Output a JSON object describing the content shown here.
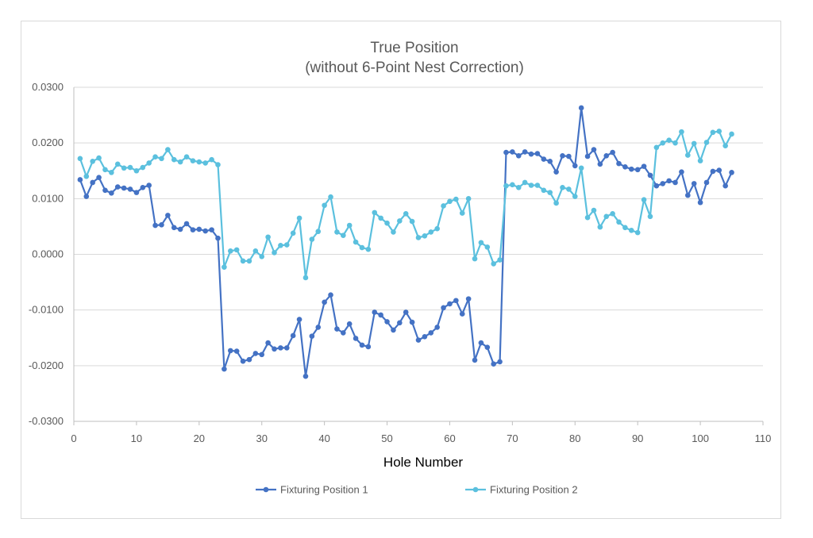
{
  "chart_data": {
    "type": "line",
    "title": "True Position",
    "subtitle": "(without 6-Point Nest Correction)",
    "xlabel": "Hole Number",
    "ylabel": "",
    "xlim": [
      0,
      110
    ],
    "ylim": [
      -0.03,
      0.03
    ],
    "x_ticks": [
      "0",
      "10",
      "20",
      "30",
      "40",
      "50",
      "60",
      "70",
      "80",
      "90",
      "100",
      "110"
    ],
    "y_ticks": [
      "-0.0300",
      "-0.0200",
      "-0.0100",
      "0.0000",
      "0.0100",
      "0.0200",
      "0.0300"
    ],
    "grid": true,
    "legend_position": "bottom",
    "x": [
      1,
      2,
      3,
      4,
      5,
      6,
      7,
      8,
      9,
      10,
      11,
      12,
      13,
      14,
      15,
      16,
      17,
      18,
      19,
      20,
      21,
      22,
      23,
      24,
      25,
      26,
      27,
      28,
      29,
      30,
      31,
      32,
      33,
      34,
      35,
      36,
      37,
      38,
      39,
      40,
      41,
      42,
      43,
      44,
      45,
      46,
      47,
      48,
      49,
      50,
      51,
      52,
      53,
      54,
      55,
      56,
      57,
      58,
      59,
      60,
      61,
      62,
      63,
      64,
      65,
      66,
      67,
      68,
      69,
      70,
      71,
      72,
      73,
      74,
      75,
      76,
      77,
      78,
      79,
      80,
      81,
      82,
      83,
      84,
      85,
      86,
      87,
      88,
      89,
      90,
      91,
      92,
      93,
      94,
      95,
      96,
      97,
      98,
      99,
      100,
      101,
      102,
      103,
      104,
      105
    ],
    "series": [
      {
        "name": "Fixturing Position 1",
        "color": "#4472c4",
        "values": [
          0.0134,
          0.0104,
          0.0129,
          0.0138,
          0.0115,
          0.011,
          0.0121,
          0.0119,
          0.0117,
          0.0111,
          0.012,
          0.0124,
          0.0052,
          0.0053,
          0.007,
          0.0048,
          0.0045,
          0.0055,
          0.0044,
          0.0045,
          0.0042,
          0.0044,
          0.0029,
          -0.0206,
          -0.0173,
          -0.0174,
          -0.0192,
          -0.0189,
          -0.0178,
          -0.018,
          -0.0159,
          -0.017,
          -0.0168,
          -0.0168,
          -0.0146,
          -0.0117,
          -0.0219,
          -0.0147,
          -0.0131,
          -0.0086,
          -0.0073,
          -0.0134,
          -0.0141,
          -0.0125,
          -0.0151,
          -0.0163,
          -0.0166,
          -0.0104,
          -0.0109,
          -0.0121,
          -0.0136,
          -0.0123,
          -0.0104,
          -0.0122,
          -0.0154,
          -0.0148,
          -0.0141,
          -0.0131,
          -0.0096,
          -0.0089,
          -0.0083,
          -0.0107,
          -0.008,
          -0.019,
          -0.0159,
          -0.0167,
          -0.0197,
          -0.0193,
          0.0183,
          0.0184,
          0.0177,
          0.0184,
          0.018,
          0.0181,
          0.0171,
          0.0167,
          0.0148,
          0.0177,
          0.0176,
          0.0159,
          0.0263,
          0.0176,
          0.0188,
          0.0162,
          0.0177,
          0.0183,
          0.0163,
          0.0157,
          0.0153,
          0.0152,
          0.0158,
          0.0142,
          0.0123,
          0.0127,
          0.0132,
          0.0129,
          0.0148,
          0.0106,
          0.0127,
          0.0093,
          0.0129,
          0.0149,
          0.0151,
          0.0123,
          0.0147
        ]
      },
      {
        "name": "Fixturing Position 2",
        "color": "#5bc0de",
        "values": [
          0.0172,
          0.014,
          0.0167,
          0.0173,
          0.0152,
          0.0147,
          0.0162,
          0.0155,
          0.0156,
          0.015,
          0.0156,
          0.0164,
          0.0175,
          0.0172,
          0.0188,
          0.017,
          0.0166,
          0.0175,
          0.0168,
          0.0166,
          0.0164,
          0.017,
          0.0161,
          -0.0023,
          0.0006,
          0.0008,
          -0.0012,
          -0.0012,
          0.0006,
          -0.0004,
          0.0031,
          0.0003,
          0.0016,
          0.0017,
          0.0038,
          0.0065,
          -0.0042,
          0.0027,
          0.0041,
          0.0088,
          0.0103,
          0.004,
          0.0034,
          0.0052,
          0.0022,
          0.0012,
          0.0009,
          0.0075,
          0.0065,
          0.0056,
          0.004,
          0.006,
          0.0073,
          0.0059,
          0.003,
          0.0033,
          0.004,
          0.0046,
          0.0087,
          0.0095,
          0.0099,
          0.0074,
          0.01,
          -0.0008,
          0.0021,
          0.0013,
          -0.0017,
          -0.001,
          0.0123,
          0.0125,
          0.012,
          0.0129,
          0.0124,
          0.0124,
          0.0115,
          0.0111,
          0.0092,
          0.012,
          0.0117,
          0.0104,
          0.0155,
          0.0066,
          0.0079,
          0.0049,
          0.0068,
          0.0073,
          0.0058,
          0.0048,
          0.0043,
          0.0039,
          0.0098,
          0.0068,
          0.0192,
          0.02,
          0.0205,
          0.02,
          0.022,
          0.0178,
          0.0199,
          0.0168,
          0.0201,
          0.0219,
          0.0221,
          0.0195,
          0.0216
        ]
      }
    ]
  }
}
